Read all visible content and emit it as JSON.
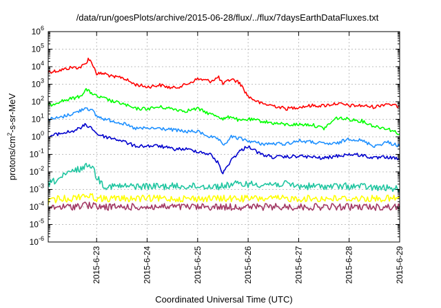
{
  "chart_data": {
    "type": "line",
    "title": "/data/run/goesPlots/archive/2015-06-28/flux/../flux/7daysEarthDataFluxes.txt",
    "xlabel": "Coordinated Universal Time (UTC)",
    "ylabel_prefix": "protons/cm",
    "ylabel_sup": "2",
    "ylabel_suffix": "-s-sr-MeV",
    "yscale": "log",
    "ylim": [
      1e-06,
      1000000.0
    ],
    "xlim": [
      "2015-06-22 01:00",
      "2015-06-29"
    ],
    "grid": true,
    "legend": "none",
    "x_ticks": [
      "2015-6-23",
      "2015-6-24",
      "2015-6-25",
      "2015-6-26",
      "2015-6-27",
      "2015-6-28",
      "2015-6-29"
    ],
    "y_ticks": [
      {
        "base": "10",
        "exp": "-6"
      },
      {
        "base": "10",
        "exp": "-5"
      },
      {
        "base": "10",
        "exp": "-4"
      },
      {
        "base": "10",
        "exp": "-3"
      },
      {
        "base": "10",
        "exp": "-2"
      },
      {
        "base": "10",
        "exp": "-1"
      },
      {
        "base": "10",
        "exp": "0"
      },
      {
        "base": "10",
        "exp": "1"
      },
      {
        "base": "10",
        "exp": "2"
      },
      {
        "base": "10",
        "exp": "3"
      },
      {
        "base": "10",
        "exp": "4"
      },
      {
        "base": "10",
        "exp": "5"
      },
      {
        "base": "10",
        "exp": "6"
      }
    ],
    "x": [
      "2015-06-22 01:00",
      "2015-06-22 06:00",
      "2015-06-22 12:00",
      "2015-06-22 16:00",
      "2015-06-22 19:00",
      "2015-06-22 20:00",
      "2015-06-22 22:00",
      "2015-06-23 00:00",
      "2015-06-23 04:00",
      "2015-06-23 08:00",
      "2015-06-23 12:00",
      "2015-06-23 18:00",
      "2015-06-24 00:00",
      "2015-06-24 06:00",
      "2015-06-24 12:00",
      "2015-06-24 18:00",
      "2015-06-25 00:00",
      "2015-06-25 06:00",
      "2015-06-25 10:00",
      "2015-06-25 12:00",
      "2015-06-25 16:00",
      "2015-06-25 20:00",
      "2015-06-26 00:00",
      "2015-06-26 06:00",
      "2015-06-26 12:00",
      "2015-06-26 18:00",
      "2015-06-27 00:00",
      "2015-06-27 06:00",
      "2015-06-27 12:00",
      "2015-06-27 18:00",
      "2015-06-28 00:00",
      "2015-06-28 06:00",
      "2015-06-28 12:00",
      "2015-06-28 18:00",
      "2015-06-29 00:00"
    ],
    "series": [
      {
        "color": "#ff0000",
        "values": [
          5000,
          6000,
          9000,
          9000,
          15000,
          30000,
          15000,
          4000,
          4000,
          2500,
          2500,
          1000,
          700,
          900,
          600,
          900,
          2000,
          1500,
          2500,
          1000,
          2000,
          1200,
          200,
          80,
          60,
          40,
          50,
          60,
          60,
          80,
          60,
          60,
          50,
          80,
          50
        ]
      },
      {
        "color": "#00ff00",
        "values": [
          60,
          100,
          150,
          200,
          500,
          400,
          300,
          200,
          150,
          100,
          80,
          40,
          40,
          50,
          40,
          30,
          40,
          20,
          15,
          10,
          15,
          8,
          10,
          8,
          6,
          5,
          5,
          5,
          3,
          12,
          10,
          8,
          4,
          3,
          1.5
        ]
      },
      {
        "color": "#1e90ff",
        "values": [
          10,
          12,
          20,
          30,
          50,
          40,
          30,
          15,
          10,
          8,
          6,
          3,
          3,
          3,
          2.5,
          2,
          2,
          1,
          0.7,
          0.3,
          1,
          0.8,
          0.6,
          0.4,
          0.4,
          0.4,
          0.6,
          0.5,
          0.4,
          0.4,
          0.8,
          0.6,
          0.3,
          0.5,
          0.3
        ]
      },
      {
        "color": "#0000cd",
        "values": [
          1,
          1.5,
          2,
          3,
          5,
          4,
          3,
          1.5,
          1,
          0.8,
          0.6,
          0.3,
          0.3,
          0.3,
          0.2,
          0.2,
          0.15,
          0.1,
          0.03,
          0.008,
          0.05,
          0.15,
          0.3,
          0.1,
          0.07,
          0.07,
          0.08,
          0.07,
          0.06,
          0.08,
          0.1,
          0.09,
          0.06,
          0.07,
          0.05
        ]
      },
      {
        "color": "#1fc5a0",
        "values": [
          0.002,
          0.004,
          0.01,
          0.015,
          0.02,
          0.03,
          0.02,
          0.005,
          0.0015,
          0.0015,
          0.0015,
          0.0015,
          0.0015,
          0.0015,
          0.0015,
          0.0015,
          0.0015,
          0.0015,
          0.0015,
          0.0015,
          0.002,
          0.002,
          0.002,
          0.002,
          0.002,
          0.002,
          0.0015,
          0.0015,
          0.0015,
          0.0015,
          0.0015,
          0.0015,
          0.0012,
          0.0012,
          0.001
        ]
      },
      {
        "color": "#ffff00",
        "values": [
          0.0002,
          0.0003,
          0.0003,
          0.0004,
          0.0005,
          0.0004,
          0.0004,
          0.0003,
          0.0003,
          0.0003,
          0.0003,
          0.0003,
          0.0003,
          0.0003,
          0.0003,
          0.0003,
          0.0003,
          0.0003,
          0.0003,
          0.0003,
          0.0003,
          0.0003,
          0.0003,
          0.0003,
          0.0003,
          0.0003,
          0.0003,
          0.0003,
          0.0003,
          0.0003,
          0.0003,
          0.0003,
          0.0003,
          0.0003,
          0.0003
        ]
      },
      {
        "color": "#a23864",
        "values": [
          8e-05,
          0.0001,
          0.0001,
          0.00012,
          0.00015,
          0.00012,
          0.00012,
          0.0001,
          0.0001,
          0.0001,
          0.0001,
          0.0001,
          0.0001,
          0.0001,
          0.0001,
          0.0001,
          0.0001,
          0.0001,
          0.0001,
          0.0001,
          0.0001,
          0.0001,
          0.0001,
          0.0001,
          0.0001,
          0.0001,
          0.0001,
          0.0001,
          0.0001,
          0.0001,
          0.0001,
          0.0001,
          0.0001,
          0.0001,
          0.0001
        ]
      }
    ]
  }
}
